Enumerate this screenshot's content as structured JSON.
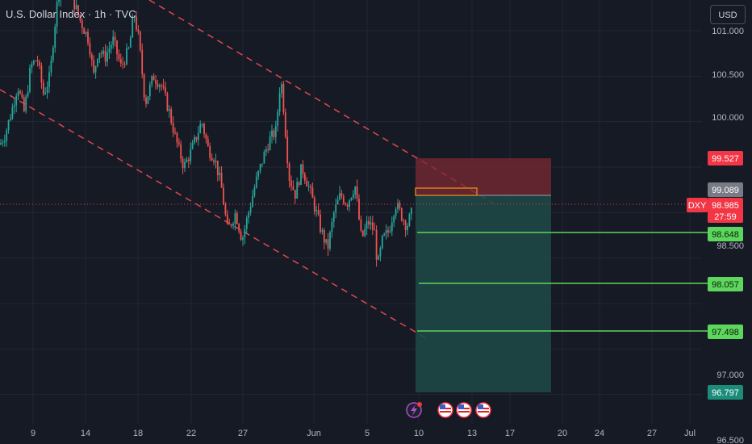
{
  "header": {
    "title": "U.S. Dollar Index · 1h · TVC",
    "currency": "USD"
  },
  "colors": {
    "background": "#161a25",
    "grid": "#232733",
    "up_candle": "#26a69a",
    "down_candle": "#ef5350",
    "channel_line": "#e0474c",
    "stop_zone": "#7a2a33",
    "target_zone": "#1d4a47",
    "target_line": "#5cd65c",
    "last_price": "#f23645",
    "text": "#b2b5be"
  },
  "chart_data": {
    "type": "candlestick",
    "x_tick_labels": [
      "9",
      "14",
      "18",
      "22",
      "27",
      "Jun",
      "5",
      "10",
      "13",
      "17",
      "20",
      "24",
      "27",
      "Jul"
    ],
    "y_tick_labels": [
      "101.000",
      "100.500",
      "100.000",
      "98.500",
      "97.000",
      "96.500"
    ],
    "ylim": [
      96.45,
      101.3
    ],
    "symbol": "DXY",
    "last_price": "98.985",
    "countdown": "27:59",
    "position": {
      "entry": "99.089",
      "stop": "99.527"
    },
    "targets": [
      "98.648",
      "98.057",
      "97.498",
      "96.797"
    ],
    "events": [
      {
        "icon": "lightning-icon"
      },
      {
        "icon": "us-flag-icon"
      },
      {
        "icon": "us-flag-icon"
      },
      {
        "icon": "us-flag-icon"
      }
    ],
    "price_path": [
      [
        0,
        99.75
      ],
      [
        6,
        99.85
      ],
      [
        14,
        100.1
      ],
      [
        22,
        100.4
      ],
      [
        30,
        100.1
      ],
      [
        38,
        100.6
      ],
      [
        46,
        100.7
      ],
      [
        54,
        100.3
      ],
      [
        62,
        100.5
      ],
      [
        66,
        100.9
      ],
      [
        72,
        101.4
      ],
      [
        82,
        101.5
      ],
      [
        92,
        101.3
      ],
      [
        100,
        101.1
      ],
      [
        110,
        100.9
      ],
      [
        116,
        100.5
      ],
      [
        122,
        100.8
      ],
      [
        130,
        100.7
      ],
      [
        140,
        100.9
      ],
      [
        150,
        100.6
      ],
      [
        160,
        100.8
      ],
      [
        166,
        101.2
      ],
      [
        172,
        100.9
      ],
      [
        180,
        100.2
      ],
      [
        190,
        100.5
      ],
      [
        200,
        100.4
      ],
      [
        210,
        100.1
      ],
      [
        218,
        99.8
      ],
      [
        228,
        99.5
      ],
      [
        238,
        99.7
      ],
      [
        250,
        100.0
      ],
      [
        258,
        99.7
      ],
      [
        266,
        99.6
      ],
      [
        274,
        99.3
      ],
      [
        282,
        98.8
      ],
      [
        292,
        99.0
      ],
      [
        300,
        98.7
      ],
      [
        308,
        99.0
      ],
      [
        316,
        99.3
      ],
      [
        326,
        99.6
      ],
      [
        334,
        99.8
      ],
      [
        342,
        99.9
      ],
      [
        348,
        100.5
      ],
      [
        352,
        100.1
      ],
      [
        358,
        99.4
      ],
      [
        366,
        99.2
      ],
      [
        374,
        99.5
      ],
      [
        382,
        99.3
      ],
      [
        392,
        99.0
      ],
      [
        398,
        98.8
      ],
      [
        406,
        98.6
      ],
      [
        414,
        99.0
      ],
      [
        422,
        99.2
      ],
      [
        430,
        99.1
      ],
      [
        440,
        99.3
      ],
      [
        448,
        98.7
      ],
      [
        456,
        98.9
      ],
      [
        464,
        98.8
      ],
      [
        468,
        98.4
      ],
      [
        474,
        98.7
      ],
      [
        482,
        98.8
      ],
      [
        490,
        99.1
      ],
      [
        496,
        99.0
      ],
      [
        504,
        98.85
      ],
      [
        510,
        98.99
      ]
    ]
  }
}
